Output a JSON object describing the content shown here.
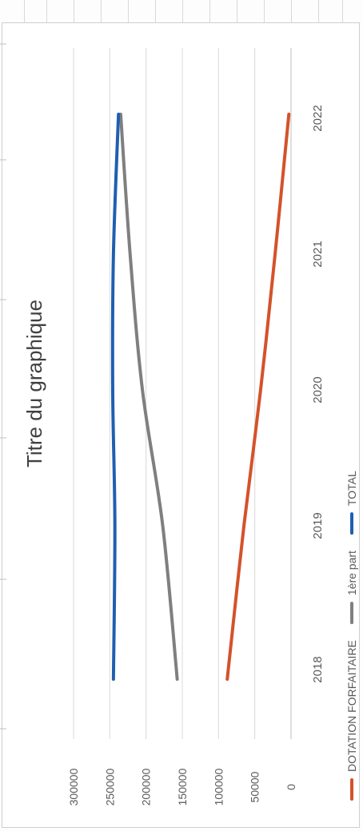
{
  "chart_data": {
    "type": "line",
    "title": "Titre du graphique",
    "categories": [
      "2018",
      "2019",
      "2020",
      "2021",
      "2022"
    ],
    "ylim": [
      0,
      300000
    ],
    "yticks": [
      "0",
      "50000",
      "100000",
      "150000",
      "200000",
      "250000",
      "300000"
    ],
    "grid": true,
    "legend_position": "bottom",
    "orientation_note": "",
    "series": [
      {
        "name": "DOTATION FORFAITAIRE",
        "color": "#d4522a",
        "values": [
          88000,
          65000,
          42000,
          22000,
          3000
        ]
      },
      {
        "name": "1ère part",
        "color": "#7f7f7f",
        "values": [
          157000,
          177000,
          205000,
          222000,
          235000
        ]
      },
      {
        "name": "TOTAL",
        "color": "#1f5fb0",
        "values": [
          245000,
          243000,
          246000,
          245000,
          238000
        ]
      }
    ]
  }
}
